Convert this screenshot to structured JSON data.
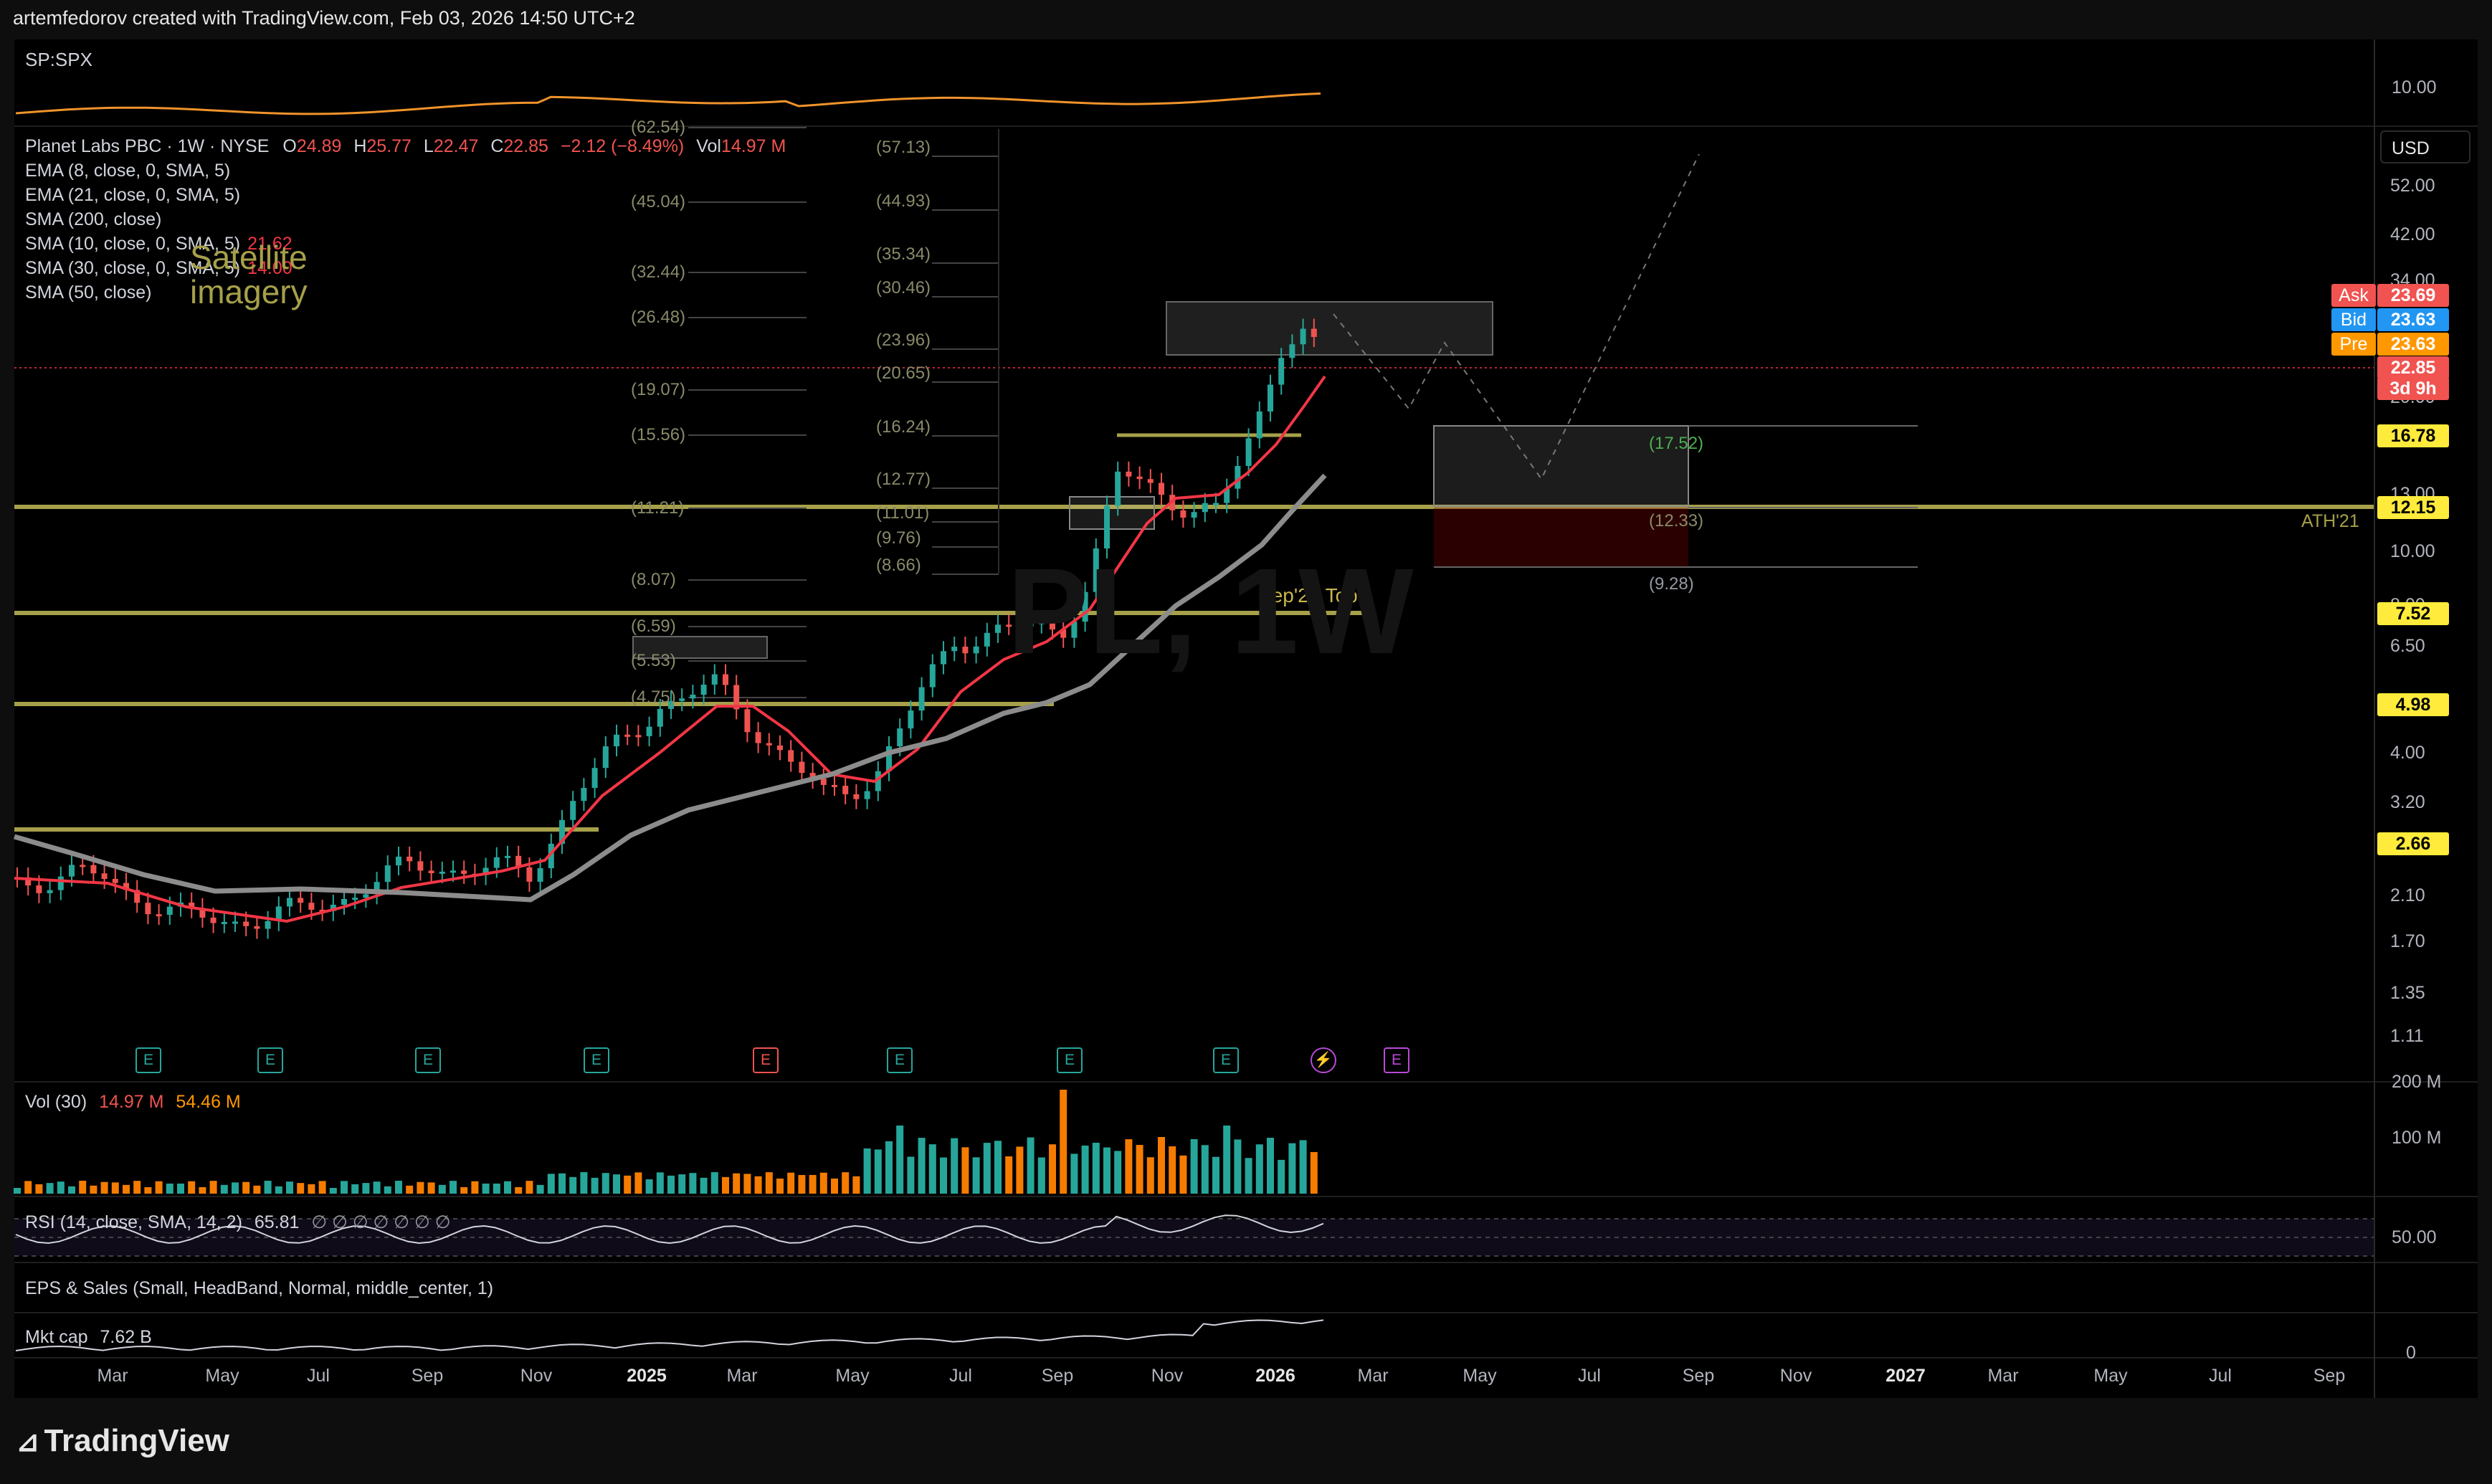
{
  "header": {
    "credit": "artemfedorov created with TradingView.com, Feb 03, 2026 14:50 UTC+2"
  },
  "compare": {
    "symbol": "SP:SPX",
    "scale_label": "10.00"
  },
  "main": {
    "title_parts": [
      "Planet Labs PBC · 1W · NYSE",
      "O",
      "24.89",
      "H",
      "25.77",
      "L",
      "22.47",
      "C",
      "22.85",
      "−2.12 (−8.49%)",
      "Vol",
      "14.97 M"
    ],
    "indicators": [
      {
        "label": "EMA (8, close, 0, SMA, 5)",
        "value": ""
      },
      {
        "label": "EMA (21, close, 0, SMA, 5)",
        "value": ""
      },
      {
        "label": "SMA (200, close)",
        "value": ""
      },
      {
        "label": "SMA (10, close, 0, SMA, 5)",
        "value": "21.62"
      },
      {
        "label": "SMA (30, close, 0, SMA, 5)",
        "value": "14.00"
      },
      {
        "label": "SMA (50, close)",
        "value": ""
      }
    ],
    "annotation": "Satellite imagery",
    "sep_label": "Sep'22 Top",
    "ath_label": "ATH'21",
    "watermark": "PL, 1W",
    "currency": "USD"
  },
  "price_axis": [
    "52.00",
    "42.00",
    "34.00",
    "20.00",
    "16.78",
    "13.00",
    "10.00",
    "8.00",
    "6.50",
    "4.00",
    "3.20",
    "2.10",
    "1.70",
    "1.35",
    "1.11"
  ],
  "badges": [
    {
      "label": "Ask",
      "value": "23.69",
      "color": "#f05350"
    },
    {
      "label": "Bid",
      "value": "23.63",
      "color": "#2196f3"
    },
    {
      "label": "Pre",
      "value": "23.63",
      "color": "#ff9800"
    },
    {
      "label": "",
      "value": "22.85",
      "color": "#f05350"
    },
    {
      "label": "",
      "value": "3d 9h",
      "color": "#f05350"
    },
    {
      "label": "",
      "value": "16.78",
      "color": "#ffeb3b"
    },
    {
      "label": "",
      "value": "12.15",
      "color": "#ffeb3b"
    },
    {
      "label": "",
      "value": "7.52",
      "color": "#ffeb3b"
    },
    {
      "label": "",
      "value": "4.98",
      "color": "#ffeb3b"
    },
    {
      "label": "",
      "value": "2.66",
      "color": "#ffeb3b"
    }
  ],
  "fib_left": [
    "(62.54)",
    "(45.04)",
    "(32.44)",
    "(26.48)",
    "(19.07)",
    "(15.56)",
    "(11.21)",
    "(8.07)",
    "(6.59)",
    "(5.53)",
    "(4.75)"
  ],
  "fib_right": [
    "(57.13)",
    "(44.93)",
    "(35.34)",
    "(30.46)",
    "(23.96)",
    "(20.65)",
    "(16.24)",
    "(12.77)",
    "(11.01)",
    "(9.76)",
    "(8.66)"
  ],
  "target_levels": [
    "(17.52)",
    "(12.33)",
    "(9.28)"
  ],
  "volume": {
    "label": "Vol (30)",
    "value1": "14.97 M",
    "value2": "54.46 M",
    "axis": [
      "200 M",
      "100 M"
    ]
  },
  "rsi": {
    "label": "RSI (14, close, SMA, 14, 2)",
    "value": "65.81",
    "extras": "∅ ∅ ∅ ∅ ∅ ∅ ∅",
    "axis": "50.00"
  },
  "eps": {
    "label": "EPS & Sales (Small, HeadBand, Normal, middle_center, 1)"
  },
  "mktcap": {
    "label": "Mkt cap",
    "value": "7.62 B",
    "axis": "0"
  },
  "time_axis": [
    {
      "label": "Mar",
      "bold": false
    },
    {
      "label": "May",
      "bold": false
    },
    {
      "label": "Jul",
      "bold": false
    },
    {
      "label": "Sep",
      "bold": false
    },
    {
      "label": "Nov",
      "bold": false
    },
    {
      "label": "2025",
      "bold": true
    },
    {
      "label": "Mar",
      "bold": false
    },
    {
      "label": "May",
      "bold": false
    },
    {
      "label": "Jul",
      "bold": false
    },
    {
      "label": "Sep",
      "bold": false
    },
    {
      "label": "Nov",
      "bold": false
    },
    {
      "label": "2026",
      "bold": true
    },
    {
      "label": "Mar",
      "bold": false
    },
    {
      "label": "May",
      "bold": false
    },
    {
      "label": "Jul",
      "bold": false
    },
    {
      "label": "Sep",
      "bold": false
    },
    {
      "label": "Nov",
      "bold": false
    },
    {
      "label": "2027",
      "bold": true
    },
    {
      "label": "Mar",
      "bold": false
    },
    {
      "label": "May",
      "bold": false
    },
    {
      "label": "Jul",
      "bold": false
    },
    {
      "label": "Sep",
      "bold": false
    }
  ],
  "earnings_markers": [
    "E",
    "E",
    "E",
    "E",
    "E",
    "E",
    "E",
    "E",
    "⚡",
    "E"
  ],
  "footer": {
    "brand": "TradingView"
  },
  "colors": {
    "up": "#26a69a",
    "down": "#ef5350",
    "ema8": "#f23645",
    "sma30": "#8c8c8c",
    "level": "#a6a04a",
    "spx": "#f0932b"
  }
}
